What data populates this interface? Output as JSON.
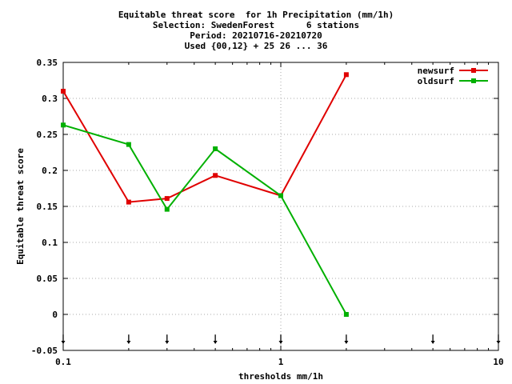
{
  "chart_data": {
    "type": "line",
    "title_lines": [
      "Equitable threat score  for 1h Precipitation (mm/1h)",
      "Selection: SwedenForest      6 stations",
      "Period: 20210716-20210720",
      "Used {00,12} + 25 26 ... 36"
    ],
    "xlabel": "thresholds mm/1h",
    "ylabel": "Equitable threat score",
    "x_scale": "log",
    "xlim": [
      0.1,
      10
    ],
    "ylim": [
      -0.05,
      0.35
    ],
    "x_ticks": [
      {
        "value": 0.1,
        "label": "0.1"
      },
      {
        "value": 1,
        "label": "1"
      },
      {
        "value": 10,
        "label": "10"
      }
    ],
    "y_ticks": [
      {
        "value": -0.05,
        "label": "-0.05"
      },
      {
        "value": 0,
        "label": "0"
      },
      {
        "value": 0.05,
        "label": "0.05"
      },
      {
        "value": 0.1,
        "label": "0.1"
      },
      {
        "value": 0.15,
        "label": "0.15"
      },
      {
        "value": 0.2,
        "label": "0.2"
      },
      {
        "value": 0.25,
        "label": "0.25"
      },
      {
        "value": 0.3,
        "label": "0.3"
      },
      {
        "value": 0.35,
        "label": "0.35"
      }
    ],
    "grid": "dotted at x=1 and y=0.05 steps",
    "legend_position": "top-right",
    "threshold_markers": [
      0.1,
      0.2,
      0.3,
      0.5,
      1,
      2,
      5,
      10
    ],
    "series": [
      {
        "name": "newsurf",
        "color": "#e00000",
        "x": [
          0.1,
          0.2,
          0.3,
          0.5,
          1,
          2
        ],
        "y": [
          0.31,
          0.156,
          0.161,
          0.193,
          0.165,
          0.333
        ]
      },
      {
        "name": "oldsurf",
        "color": "#00b000",
        "x": [
          0.1,
          0.2,
          0.3,
          0.5,
          1,
          2
        ],
        "y": [
          0.263,
          0.236,
          0.146,
          0.23,
          0.165,
          0.0
        ]
      }
    ]
  }
}
